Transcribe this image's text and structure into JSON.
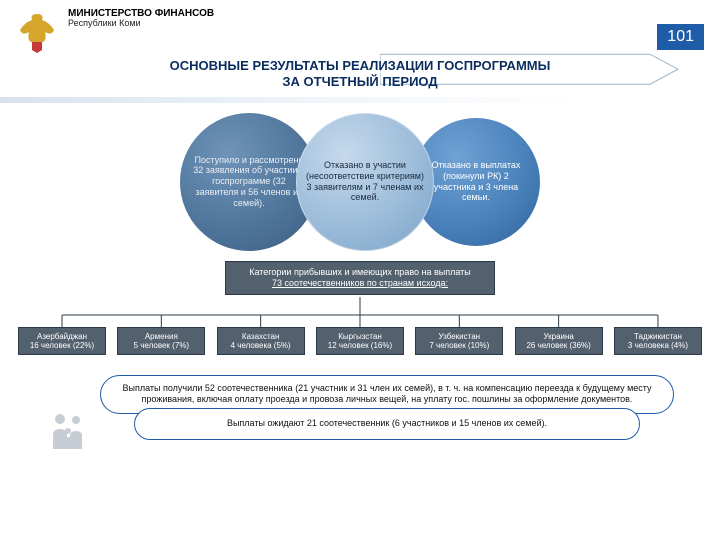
{
  "page_number": "101",
  "ministry": {
    "title": "МИНИСТЕРСТВО ФИНАНСОВ",
    "subtitle": "Республики Коми"
  },
  "main_title_l1": "ОСНОВНЫЕ РЕЗУЛЬТАТЫ РЕАЛИЗАЦИИ ГОСПРОГРАММЫ",
  "main_title_l2": "ЗА ОТЧЕТНЫЙ ПЕРИОД",
  "colors": {
    "brand": "#1f5ca8",
    "title_text": "#0a2d5e",
    "circle1": "#4e7399",
    "circle2": "#9cbcd9",
    "circle3": "#4b82bb",
    "org_box": "#53606d",
    "emblem_bird": "#d4a72c",
    "emblem_shield": "#c53a3a"
  },
  "circles": {
    "c1": "Поступило и рассмотрено 32 заявления об участии в госпрограмме (32 заявителя и 56 членов их семей).",
    "c2": "Отказано в участии (несоответствие критериям) 3 заявителям и 7 членам их семей.",
    "c3": "Отказано в выплатах (покинули РК) 2 участника и 3 члена семьи."
  },
  "org": {
    "root_l1": "Категории прибывших и имеющих право на выплаты",
    "root_l2": "73 соотечественников по странам исхода:",
    "children": [
      {
        "name": "Азербайджан",
        "value": "16 человек (22%)"
      },
      {
        "name": "Армения",
        "value": "5 человек (7%)"
      },
      {
        "name": "Казахстан",
        "value": "4 человека (5%)"
      },
      {
        "name": "Кыргызстан",
        "value": "12 человек (16%)"
      },
      {
        "name": "Узбекистан",
        "value": "7 человек (10%)"
      },
      {
        "name": "Украина",
        "value": "26 человек (36%)"
      },
      {
        "name": "Таджикистан",
        "value": "3 человека (4%)"
      }
    ]
  },
  "payouts": {
    "p1": "Выплаты получили 52 соотечественника (21 участник и 31 член их семей), в т. ч. на компенсацию переезда к будущему месту проживания, включая оплату проезда и провоза личных вещей, на уплату гос. пошлины за оформление документов.",
    "p2": "Выплаты ожидают 21 соотечественник (6 участников и 15 членов их семей)."
  }
}
